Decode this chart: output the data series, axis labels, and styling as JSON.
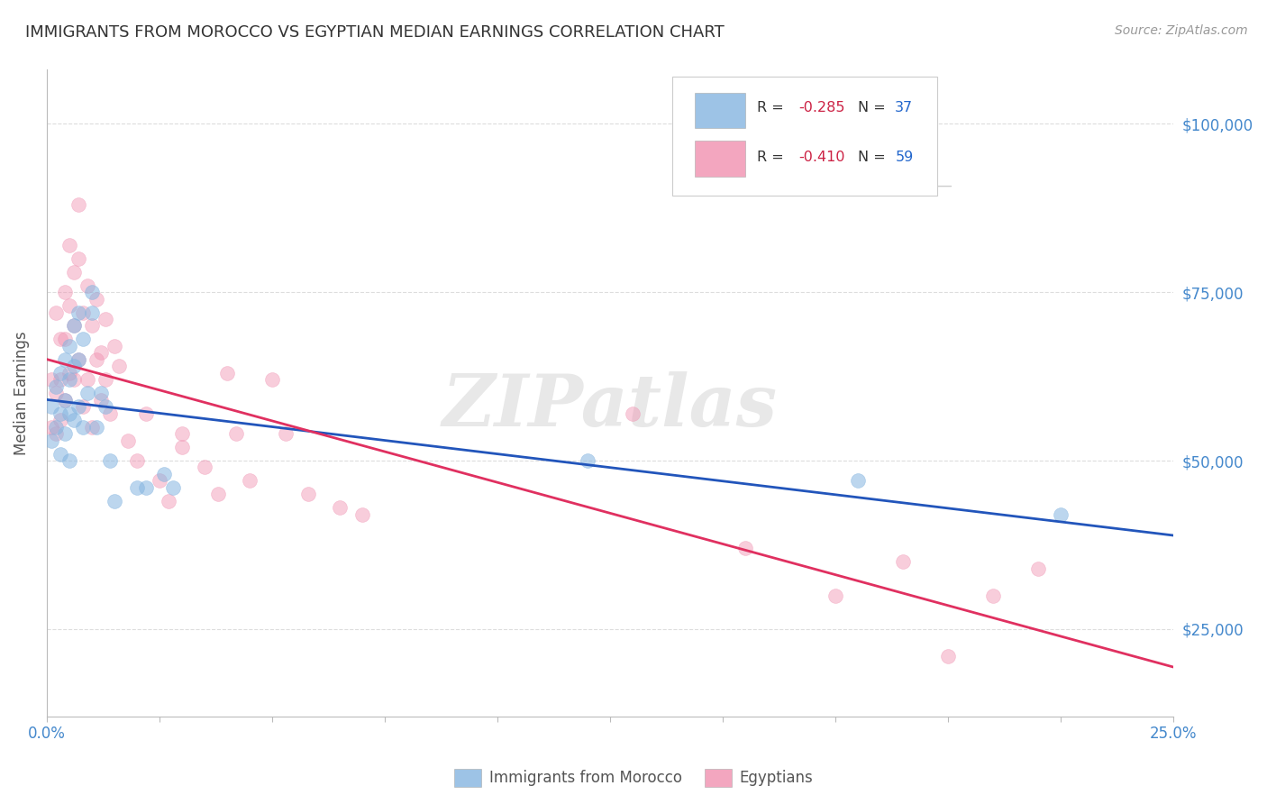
{
  "title": "IMMIGRANTS FROM MOROCCO VS EGYPTIAN MEDIAN EARNINGS CORRELATION CHART",
  "source": "Source: ZipAtlas.com",
  "ylabel": "Median Earnings",
  "y_ticks": [
    25000,
    50000,
    75000,
    100000
  ],
  "y_tick_labels": [
    "$25,000",
    "$50,000",
    "$75,000",
    "$100,000"
  ],
  "xmin": 0.0,
  "xmax": 0.25,
  "ymin": 12000,
  "ymax": 108000,
  "legend_r_blue": "R = -0.285",
  "legend_n_blue": "N = 37",
  "legend_r_pink": "R = -0.410",
  "legend_n_pink": "N = 59",
  "legend_label_blue": "Immigrants from Morocco",
  "legend_label_pink": "Egyptians",
  "blue_color": "#85b5e0",
  "pink_color": "#f090b0",
  "blue_line_color": "#2255bb",
  "pink_line_color": "#e03060",
  "blue_alpha": 0.55,
  "pink_alpha": 0.45,
  "marker_size": 130,
  "blue_x": [
    0.001,
    0.001,
    0.002,
    0.002,
    0.003,
    0.003,
    0.003,
    0.004,
    0.004,
    0.004,
    0.005,
    0.005,
    0.005,
    0.005,
    0.006,
    0.006,
    0.006,
    0.007,
    0.007,
    0.007,
    0.008,
    0.008,
    0.009,
    0.01,
    0.01,
    0.011,
    0.012,
    0.013,
    0.014,
    0.015,
    0.02,
    0.022,
    0.026,
    0.028,
    0.12,
    0.18,
    0.225
  ],
  "blue_y": [
    58000,
    53000,
    61000,
    55000,
    63000,
    57000,
    51000,
    65000,
    59000,
    54000,
    67000,
    62000,
    57000,
    50000,
    70000,
    64000,
    56000,
    72000,
    65000,
    58000,
    68000,
    55000,
    60000,
    75000,
    72000,
    55000,
    60000,
    58000,
    50000,
    44000,
    46000,
    46000,
    48000,
    46000,
    50000,
    47000,
    42000
  ],
  "pink_x": [
    0.001,
    0.001,
    0.002,
    0.002,
    0.002,
    0.003,
    0.003,
    0.003,
    0.004,
    0.004,
    0.004,
    0.005,
    0.005,
    0.005,
    0.006,
    0.006,
    0.006,
    0.007,
    0.007,
    0.007,
    0.008,
    0.008,
    0.009,
    0.009,
    0.01,
    0.01,
    0.011,
    0.011,
    0.012,
    0.012,
    0.013,
    0.013,
    0.014,
    0.015,
    0.016,
    0.018,
    0.02,
    0.022,
    0.025,
    0.027,
    0.03,
    0.03,
    0.035,
    0.038,
    0.04,
    0.042,
    0.045,
    0.05,
    0.053,
    0.058,
    0.065,
    0.07,
    0.13,
    0.155,
    0.175,
    0.19,
    0.2,
    0.21,
    0.22
  ],
  "pink_y": [
    62000,
    55000,
    72000,
    60000,
    54000,
    68000,
    62000,
    56000,
    75000,
    68000,
    59000,
    82000,
    73000,
    63000,
    78000,
    70000,
    62000,
    88000,
    80000,
    65000,
    72000,
    58000,
    76000,
    62000,
    70000,
    55000,
    74000,
    65000,
    66000,
    59000,
    71000,
    62000,
    57000,
    67000,
    64000,
    53000,
    50000,
    57000,
    47000,
    44000,
    54000,
    52000,
    49000,
    45000,
    63000,
    54000,
    47000,
    62000,
    54000,
    45000,
    43000,
    42000,
    57000,
    37000,
    30000,
    35000,
    21000,
    30000,
    34000
  ],
  "watermark": "ZIPatlas",
  "bg_color": "#ffffff",
  "grid_color": "#dddddd",
  "title_color": "#333333",
  "source_color": "#999999",
  "tick_label_color": "#4488cc",
  "axis_label_color": "#555555",
  "legend_text_color_r": "#cc2244",
  "legend_text_color_n": "#2266cc"
}
